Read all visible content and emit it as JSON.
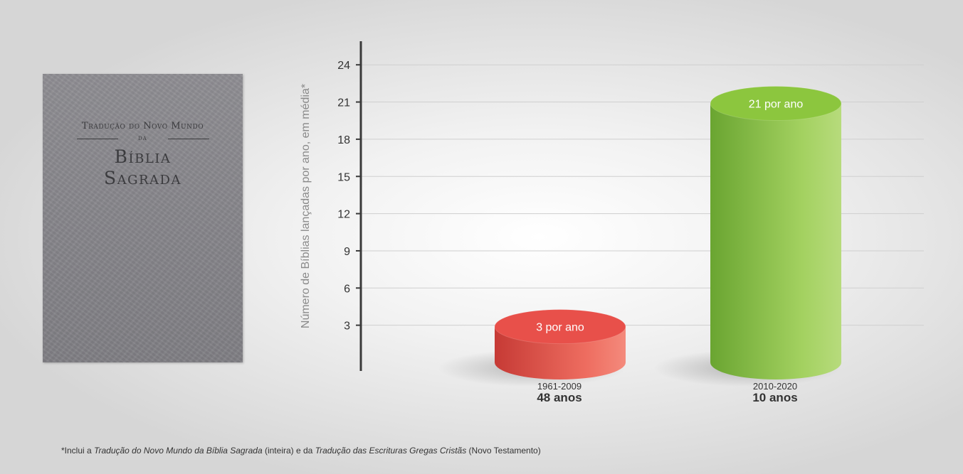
{
  "book": {
    "title_line1": "Tradução do Novo Mundo",
    "title_line2": "da",
    "title_line3": "Bíblia",
    "title_line4": "Sagrada",
    "cover_color": "#89888d"
  },
  "chart_data": {
    "type": "bar",
    "title": "",
    "xlabel": "",
    "ylabel": "Número de Bíblias lançadas por ano, em média*",
    "ylim": [
      0,
      27
    ],
    "yticks": [
      3,
      6,
      9,
      12,
      15,
      18,
      21,
      24
    ],
    "grid": true,
    "categories": [
      "1961-2009",
      "2010-2020"
    ],
    "category_sublabels": [
      "48 anos",
      "10 anos"
    ],
    "values": [
      3,
      21
    ],
    "value_labels": [
      "3 por ano",
      "21 por ano"
    ],
    "colors": [
      "#e8504a",
      "#8cc63e"
    ]
  },
  "footnote": {
    "prefix": "*Inclui a ",
    "title1": "Tradução do Novo Mundo da Bíblia Sagrada",
    "middle": " (inteira) e da ",
    "title2": "Tradução das Escrituras Gregas Cristãs",
    "suffix": " (Novo Testamento)"
  }
}
